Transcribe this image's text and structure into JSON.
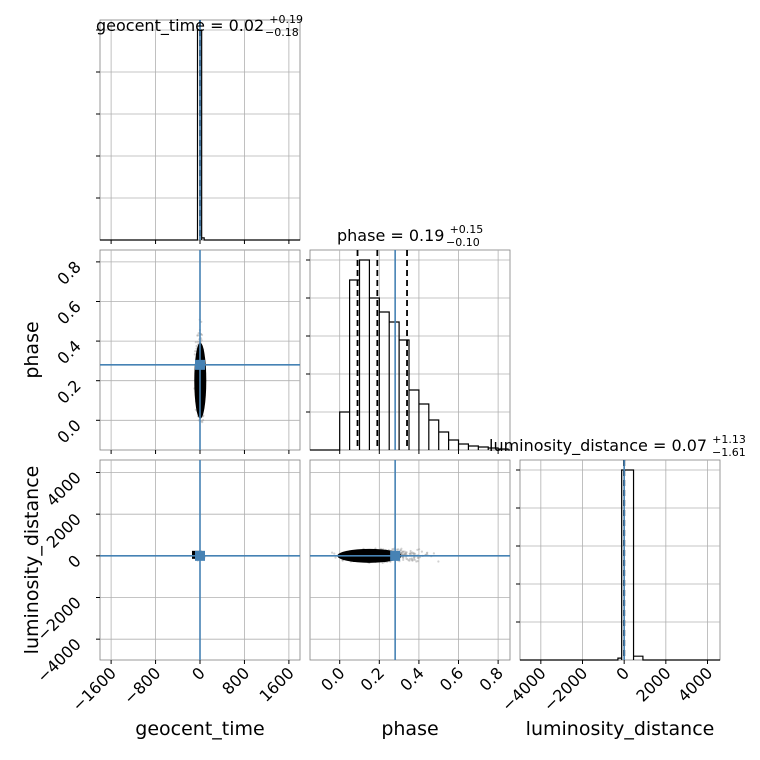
{
  "chart_data": {
    "type": "corner",
    "parameters": [
      "geocent_time",
      "phase",
      "luminosity_distance"
    ],
    "axis_labels": {
      "geocent_time": "geocent_time",
      "phase": "phase",
      "luminosity_distance": "luminosity_distance"
    },
    "titles": {
      "geocent_time": {
        "label": "geocent_time = 0.02",
        "plus": "+0.19",
        "minus": "−0.18"
      },
      "phase": {
        "label": "phase = 0.19",
        "plus": "+0.15",
        "minus": "−0.10"
      },
      "luminosity_distance": {
        "label": "luminosity_distance = 0.07",
        "plus": "+1.13",
        "minus": "−1.61"
      }
    },
    "ranges": {
      "geocent_time": [
        -1800,
        1800
      ],
      "phase": [
        -0.15,
        0.86
      ],
      "luminosity_distance": [
        -5000,
        4600
      ]
    },
    "ticks": {
      "geocent_time": {
        "values": [
          -1600,
          -800,
          0,
          800,
          1600
        ],
        "labels": [
          "−1600",
          "−800",
          "0",
          "800",
          "1600"
        ]
      },
      "phase_x": {
        "values": [
          0.0,
          0.2,
          0.4,
          0.6,
          0.8
        ],
        "labels": [
          "0.0",
          "0.2",
          "0.4",
          "0.6",
          "0.8"
        ]
      },
      "phase_y": {
        "values": [
          0.0,
          0.2,
          0.4,
          0.6,
          0.8
        ],
        "labels": [
          "0.0",
          "0.2",
          "0.4",
          "0.6",
          "0.8"
        ]
      },
      "luminosity_distance": {
        "values": [
          -4000,
          -2000,
          0,
          2000,
          4000
        ],
        "labels": [
          "−4000",
          "−2000",
          "0",
          "2000",
          "4000"
        ]
      }
    },
    "truths": {
      "geocent_time": 0,
      "phase": 0.28,
      "luminosity_distance": 0
    },
    "quantiles": {
      "geocent_time": [
        -0.16,
        0.02,
        0.21
      ],
      "phase": [
        0.09,
        0.19,
        0.34
      ],
      "luminosity_distance": [
        -1.54,
        0.07,
        1.2
      ]
    },
    "histograms": {
      "geocent_time": {
        "bin_edges": [
          -45,
          0,
          30,
          75
        ],
        "counts": [
          1.0,
          1.0,
          0.01
        ]
      },
      "phase": {
        "bin_edges": [
          0.0,
          0.05,
          0.1,
          0.15,
          0.2,
          0.25,
          0.3,
          0.35,
          0.4,
          0.45,
          0.5,
          0.55,
          0.6,
          0.65,
          0.7,
          0.75,
          0.8,
          0.85
        ],
        "counts": [
          0.19,
          0.85,
          0.95,
          0.76,
          0.69,
          0.64,
          0.55,
          0.3,
          0.23,
          0.15,
          0.09,
          0.05,
          0.03,
          0.02,
          0.015,
          0.01,
          0.005
        ]
      },
      "luminosity_distance": {
        "bin_edges": [
          -300,
          -120,
          450,
          900
        ],
        "counts": [
          0.01,
          1.0,
          0.02
        ]
      }
    },
    "grid": true
  }
}
